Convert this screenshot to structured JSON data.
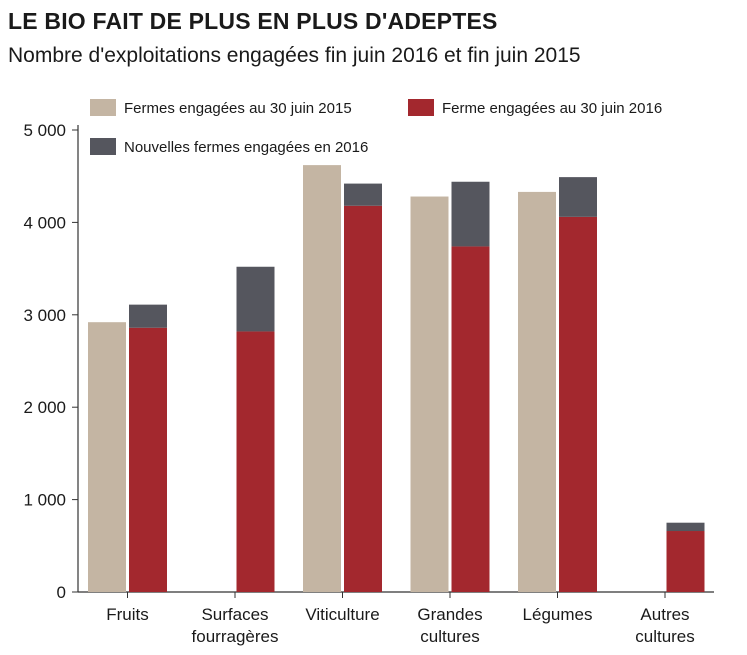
{
  "title": "LE BIO FAIT DE PLUS EN PLUS D'ADEPTES",
  "subtitle": "Nombre d'exploitations engagées fin juin 2016 et fin juin 2015",
  "colors": {
    "series_2015": "#c4b5a3",
    "series_2016": "#a3282e",
    "series_new": "#55565e",
    "axis": "#333333"
  },
  "chart_data": {
    "type": "bar",
    "categories": [
      [
        "Fruits"
      ],
      [
        "Surfaces",
        "fourragères"
      ],
      [
        "Viticulture"
      ],
      [
        "Grandes",
        "cultures"
      ],
      [
        "Légumes"
      ],
      [
        "Autres",
        "cultures"
      ]
    ],
    "series": [
      {
        "name": "Fermes engagées au 30 juin 2015",
        "values": [
          2920,
          null,
          4620,
          4280,
          4330,
          null
        ]
      },
      {
        "name": "Ferme engagées au 30 juin 2016",
        "values": [
          2860,
          2820,
          4180,
          3740,
          4060,
          660
        ]
      },
      {
        "name": "Nouvelles fermes engagées en 2016",
        "values": [
          250,
          700,
          240,
          700,
          430,
          90
        ],
        "stacked_on": "Ferme engagées au 30 juin 2016"
      }
    ],
    "yticks": [
      0,
      1000,
      2000,
      3000,
      4000,
      5000
    ],
    "ytick_labels": [
      "0",
      "1 000",
      "2 000",
      "3 000",
      "4 000",
      "5 000"
    ],
    "ylim": [
      0,
      5000
    ],
    "legend_position": "top",
    "grid": false
  }
}
